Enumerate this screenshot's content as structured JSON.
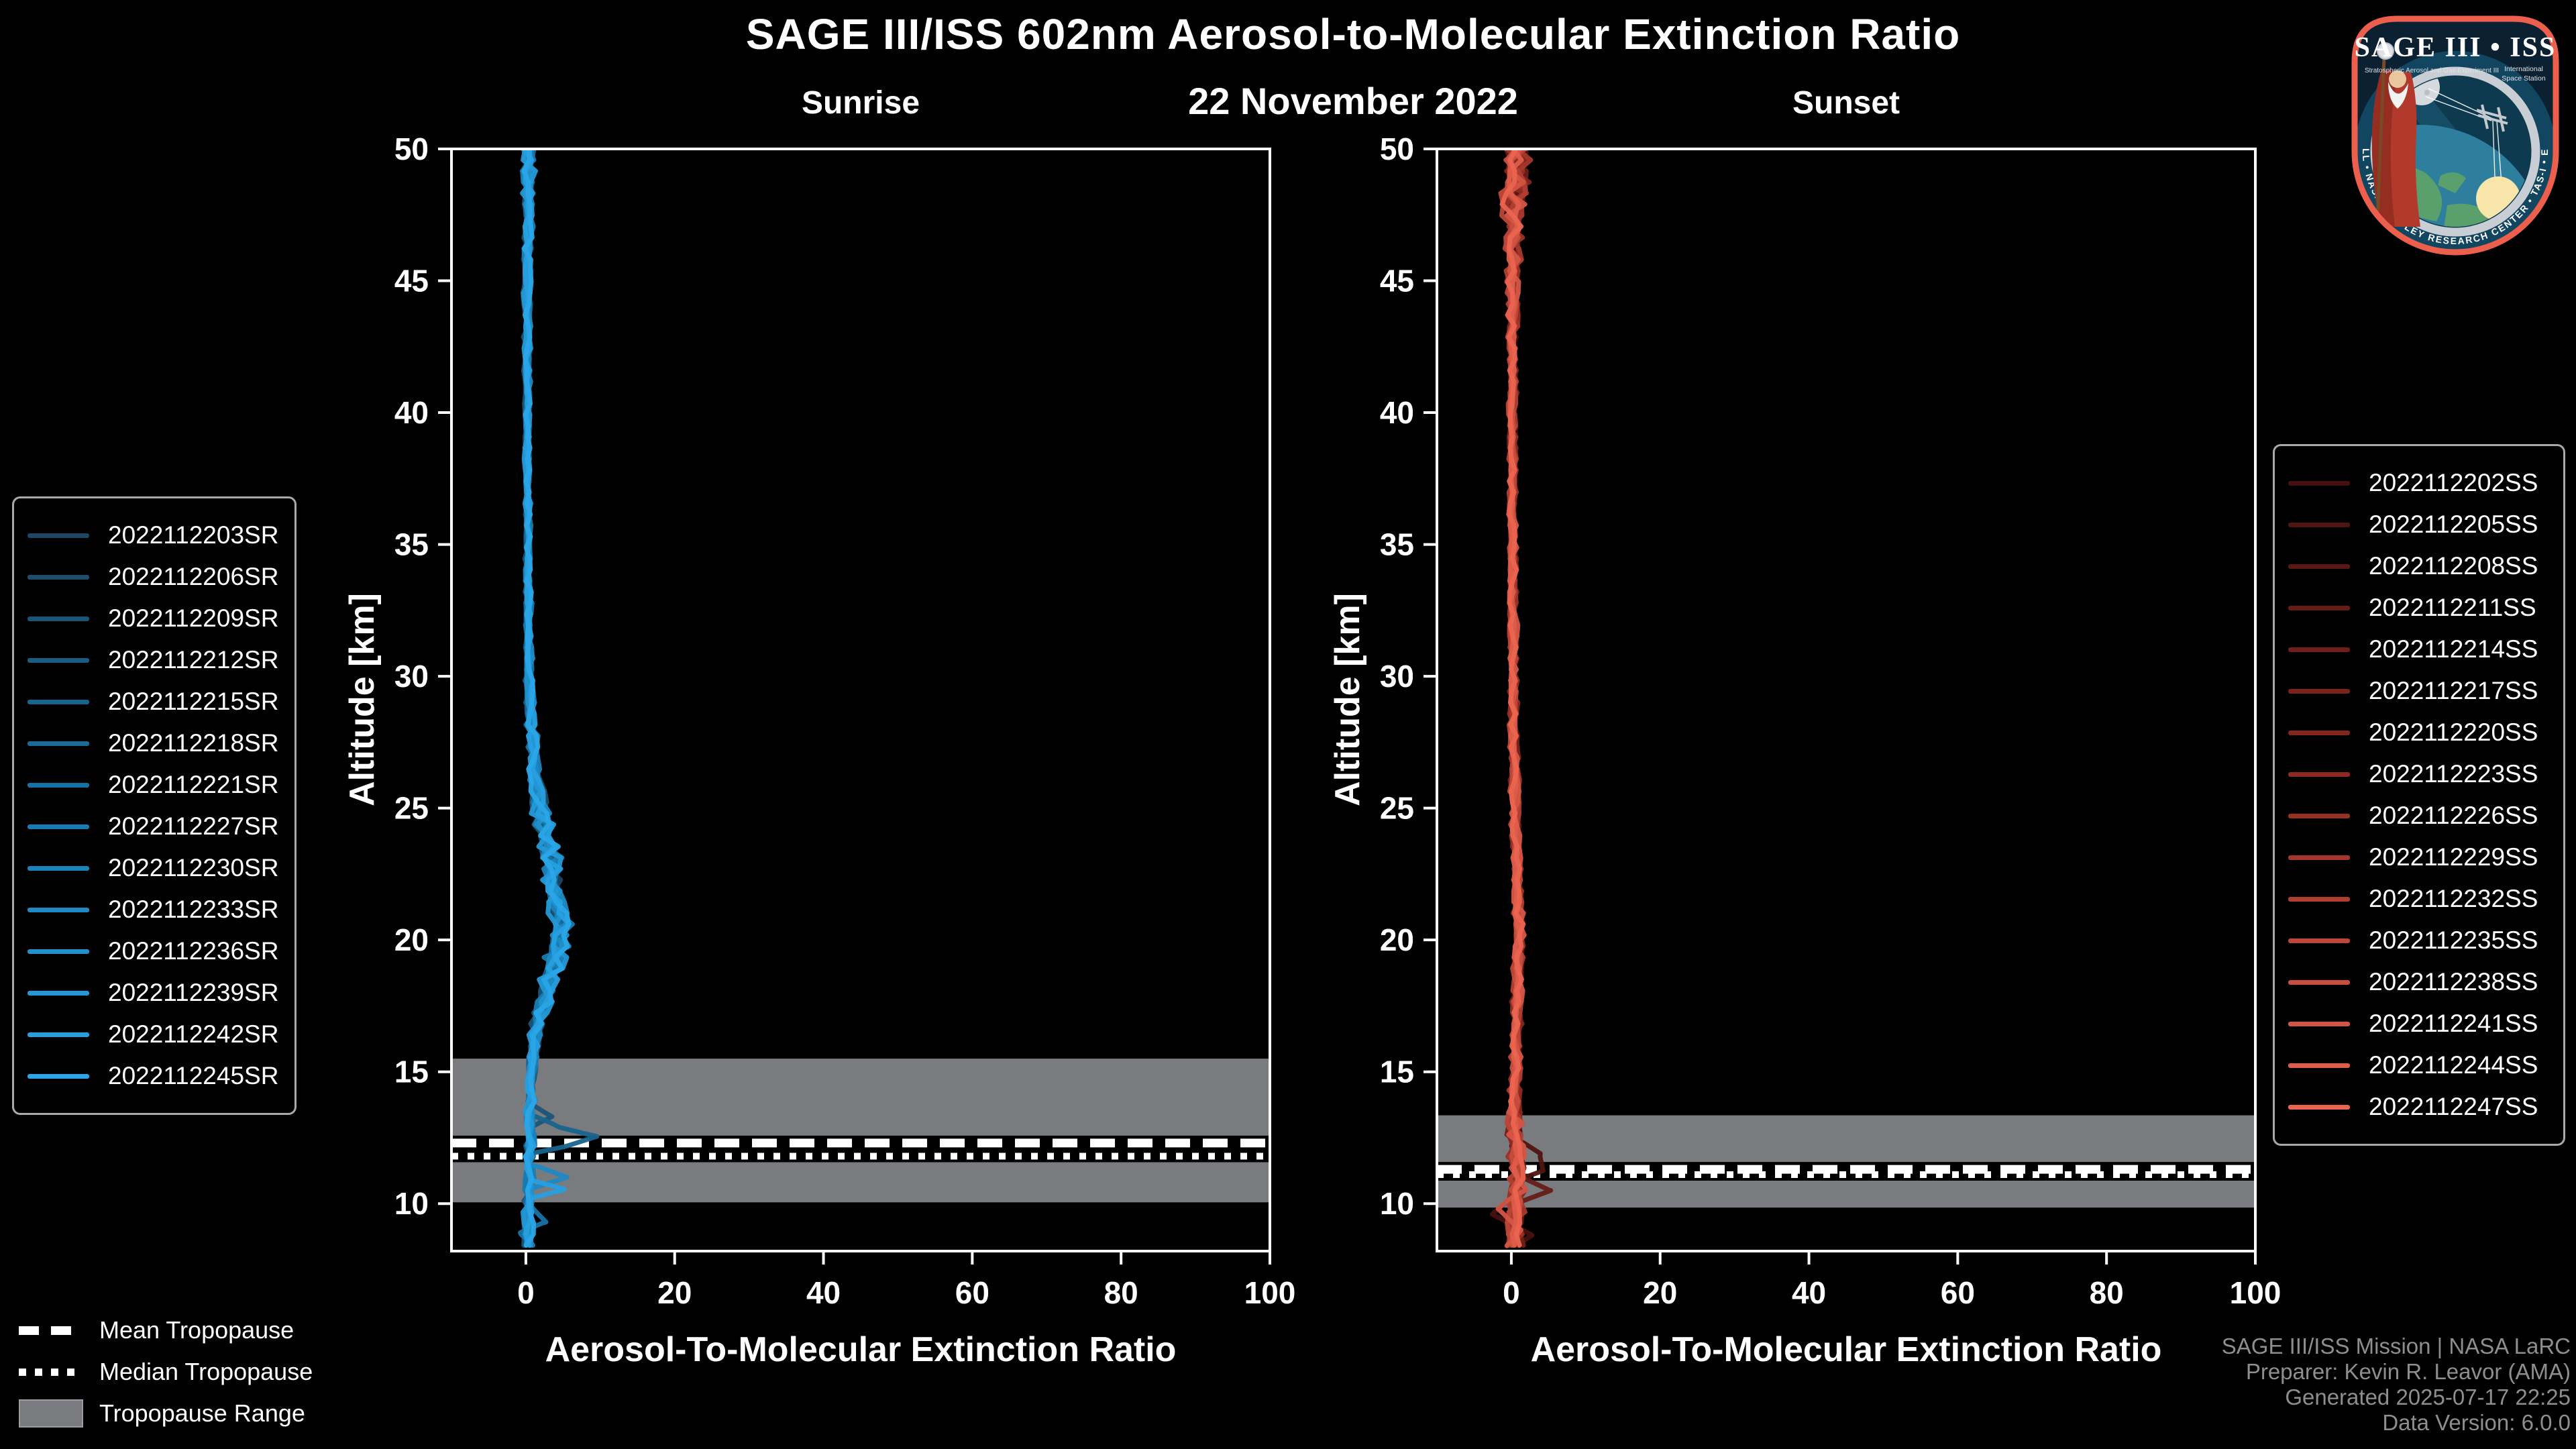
{
  "header": {
    "title": "SAGE III/ISS 602nm Aerosol-to-Molecular Extinction Ratio",
    "date": "22 November 2022"
  },
  "chart_data": [
    {
      "type": "line",
      "title": "Sunrise",
      "xlabel": "Aerosol-To-Molecular Extinction Ratio",
      "ylabel": "Altitude [km]",
      "xlim": [
        -10,
        100
      ],
      "ylim": [
        8.2,
        50
      ],
      "xticks": [
        0,
        20,
        40,
        60,
        80,
        100
      ],
      "yticks": [
        10,
        15,
        20,
        25,
        30,
        35,
        40,
        45,
        50
      ],
      "grid": false,
      "legend_position": "outside-left",
      "color_stops": [
        "#1d4660",
        "#1677ac",
        "#2aa6e8"
      ],
      "series": [
        "2022112203SR",
        "2022112206SR",
        "2022112209SR",
        "2022112212SR",
        "2022112215SR",
        "2022112218SR",
        "2022112221SR",
        "2022112227SR",
        "2022112230SR",
        "2022112233SR",
        "2022112236SR",
        "2022112239SR",
        "2022112242SR",
        "2022112245SR"
      ],
      "base_profile": [
        [
          50,
          0.4
        ],
        [
          48,
          0.3
        ],
        [
          46,
          0.25
        ],
        [
          44,
          0.2
        ],
        [
          42,
          0.2
        ],
        [
          40,
          0.2
        ],
        [
          38,
          0.2
        ],
        [
          36,
          0.25
        ],
        [
          34,
          0.3
        ],
        [
          32,
          0.35
        ],
        [
          30,
          0.45
        ],
        [
          28,
          0.7
        ],
        [
          27,
          0.9
        ],
        [
          26,
          1.3
        ],
        [
          25,
          1.9
        ],
        [
          24,
          2.7
        ],
        [
          23,
          3.3
        ],
        [
          22,
          3.9
        ],
        [
          21,
          4.4
        ],
        [
          20.3,
          4.7
        ],
        [
          19.5,
          4.1
        ],
        [
          19,
          3.6
        ],
        [
          18,
          2.7
        ],
        [
          17,
          1.8
        ],
        [
          16,
          1.1
        ],
        [
          15,
          0.7
        ],
        [
          14,
          0.6
        ],
        [
          13,
          0.6
        ],
        [
          12,
          0.5
        ],
        [
          11,
          0.5
        ],
        [
          10,
          0.4
        ],
        [
          9,
          0.4
        ],
        [
          8.3,
          0.5
        ]
      ],
      "noise_profile": [
        [
          50,
          0.9
        ],
        [
          48.5,
          0.7
        ],
        [
          46,
          0.5
        ],
        [
          42,
          0.35
        ],
        [
          36,
          0.3
        ],
        [
          31,
          0.4
        ],
        [
          28,
          0.6
        ],
        [
          26,
          0.9
        ],
        [
          24,
          1.2
        ],
        [
          22,
          1.3
        ],
        [
          20,
          1.3
        ],
        [
          18,
          1.1
        ],
        [
          16,
          0.7
        ],
        [
          14,
          0.5
        ],
        [
          12,
          0.6
        ],
        [
          10,
          0.6
        ],
        [
          8.3,
          0.6
        ]
      ],
      "spikes": [
        {
          "series": 4,
          "points": [
            [
              13.4,
              0.6
            ],
            [
              12.9,
              4.5
            ],
            [
              12.55,
              9.6
            ],
            [
              12.15,
              5.0
            ],
            [
              11.9,
              0.8
            ]
          ]
        },
        {
          "series": 2,
          "points": [
            [
              13.8,
              0.5
            ],
            [
              13.3,
              3.6
            ],
            [
              12.9,
              0.6
            ]
          ]
        },
        {
          "series": 9,
          "points": [
            [
              11.5,
              0.6
            ],
            [
              11.0,
              5.6
            ],
            [
              10.55,
              0.5
            ]
          ]
        },
        {
          "series": 12,
          "points": [
            [
              10.9,
              0.5
            ],
            [
              10.55,
              5.3
            ],
            [
              10.2,
              0.6
            ]
          ]
        },
        {
          "series": 6,
          "points": [
            [
              10.0,
              0.5
            ],
            [
              9.3,
              2.6
            ],
            [
              8.9,
              -0.8
            ],
            [
              8.5,
              0.6
            ]
          ]
        }
      ],
      "tropopause": {
        "mean": 12.3,
        "median": 11.8,
        "range": [
          10.05,
          15.5
        ]
      }
    },
    {
      "type": "line",
      "title": "Sunset",
      "xlabel": "Aerosol-To-Molecular Extinction Ratio",
      "ylabel": "Altitude [km]",
      "xlim": [
        -10,
        100
      ],
      "ylim": [
        8.2,
        50
      ],
      "xticks": [
        0,
        20,
        40,
        60,
        80,
        100
      ],
      "yticks": [
        10,
        15,
        20,
        25,
        30,
        35,
        40,
        45,
        50
      ],
      "grid": false,
      "legend_position": "outside-right",
      "color_stops": [
        "#451110",
        "#932c22",
        "#ea6450"
      ],
      "series": [
        "2022112202SS",
        "2022112205SS",
        "2022112208SS",
        "2022112211SS",
        "2022112214SS",
        "2022112217SS",
        "2022112220SS",
        "2022112223SS",
        "2022112226SS",
        "2022112229SS",
        "2022112232SS",
        "2022112235SS",
        "2022112238SS",
        "2022112241SS",
        "2022112244SS",
        "2022112247SS"
      ],
      "base_profile": [
        [
          50,
          0.6
        ],
        [
          48.5,
          0.4
        ],
        [
          47,
          0.3
        ],
        [
          45,
          0.25
        ],
        [
          42,
          0.2
        ],
        [
          38,
          0.2
        ],
        [
          34,
          0.2
        ],
        [
          30,
          0.3
        ],
        [
          27,
          0.4
        ],
        [
          24,
          0.6
        ],
        [
          22,
          0.8
        ],
        [
          20,
          1.0
        ],
        [
          18,
          0.8
        ],
        [
          16,
          0.6
        ],
        [
          14,
          0.5
        ],
        [
          12.5,
          0.5
        ],
        [
          11.5,
          0.7
        ],
        [
          10.5,
          0.7
        ],
        [
          9.5,
          0.6
        ],
        [
          8.3,
          0.7
        ]
      ],
      "noise_profile": [
        [
          50,
          1.7
        ],
        [
          48.5,
          1.5
        ],
        [
          47,
          1.1
        ],
        [
          45,
          0.7
        ],
        [
          42,
          0.45
        ],
        [
          36,
          0.4
        ],
        [
          30,
          0.45
        ],
        [
          24,
          0.5
        ],
        [
          20,
          0.55
        ],
        [
          16,
          0.6
        ],
        [
          13,
          0.8
        ],
        [
          11,
          1.0
        ],
        [
          9.5,
          1.1
        ],
        [
          8.3,
          1.0
        ]
      ],
      "spikes": [
        {
          "series": 1,
          "points": [
            [
              12.5,
              0.6
            ],
            [
              11.9,
              3.9
            ],
            [
              11.25,
              4.3
            ],
            [
              10.9,
              0.8
            ]
          ]
        },
        {
          "series": 3,
          "points": [
            [
              11.1,
              0.6
            ],
            [
              10.5,
              5.2
            ],
            [
              10.0,
              0.5
            ]
          ]
        },
        {
          "series": 0,
          "points": [
            [
              10.4,
              0.6
            ],
            [
              9.6,
              -2.5
            ],
            [
              8.8,
              2.8
            ],
            [
              8.4,
              0.5
            ]
          ]
        },
        {
          "series": 13,
          "points": [
            [
              10.3,
              0.4
            ],
            [
              9.8,
              -1.9
            ],
            [
              9.0,
              1.2
            ],
            [
              8.4,
              -0.6
            ]
          ]
        }
      ],
      "tropopause": {
        "mean": 11.3,
        "median": 11.1,
        "range": [
          9.85,
          13.35
        ]
      }
    }
  ],
  "tropopause_legend": {
    "mean": "Mean Tropopause",
    "median": "Median Tropopause",
    "range": "Tropopause Range"
  },
  "credits": {
    "line1": "SAGE III/ISS Mission | NASA LaRC",
    "line2": "Preparer: Kevin R. Leavor (AMA)",
    "line3": "Generated 2025-07-17 22:25",
    "line4": "Data Version: 6.0.0"
  },
  "logo": {
    "title": "SAGE III • ISS",
    "subtitle_left": "Stratospheric Aerosol and Gas Experiment III",
    "subtitle_right_lines": [
      "International",
      "Space Station"
    ],
    "ring_text": "BALL • NASA LANGLEY RESEARCH CENTER • TAS-I • ESA"
  },
  "colors": {
    "background": "#000000",
    "text": "#ffffff",
    "tropopause_band": "#7a7b7e",
    "credits_text": "#8e8e8e",
    "legend_border": "#a9a9a9",
    "logo_border": "#ec5f4c"
  }
}
